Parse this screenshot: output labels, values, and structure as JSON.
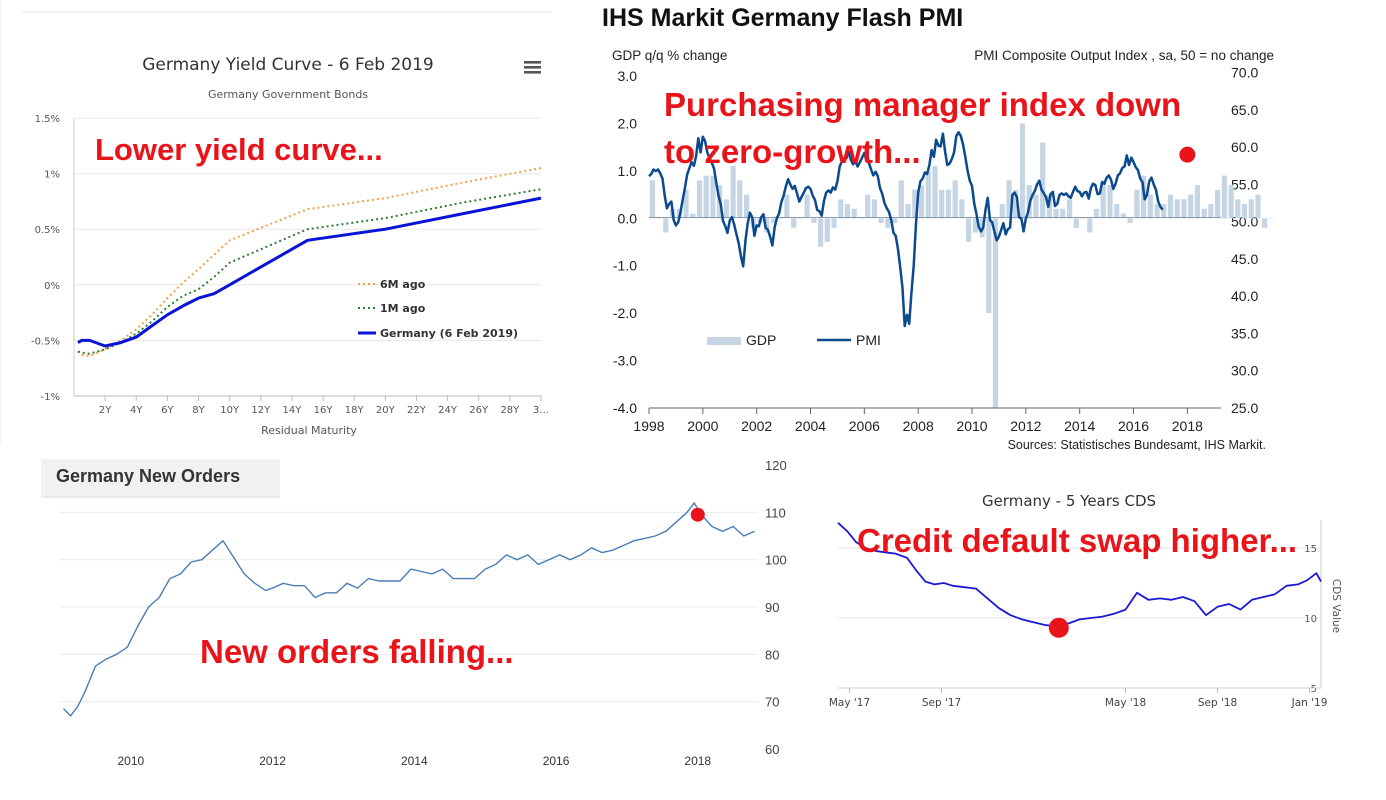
{
  "annotations": {
    "yield": "Lower yield curve...",
    "pmi_line1": "Purchasing manager index down",
    "pmi_line2": "to zero-growth...",
    "orders": "New orders falling...",
    "cds": "Credit default swap higher..."
  },
  "colors": {
    "annotation": "#e8141a",
    "germany_line": "#0a14d6",
    "six_m": "#f2a04a",
    "one_m": "#2e7d32",
    "pmi_line": "#0b4a8e",
    "gdp_bar": "#c5d5e4",
    "orders_line": "#4a7fb5",
    "cds_line": "#1a1ad6",
    "marker": "#e8141a"
  },
  "chart_data": [
    {
      "id": "yield_curve",
      "type": "line",
      "title": "Germany Yield Curve - 6 Feb 2019",
      "subtitle": "Germany Government Bonds",
      "menu_icon": "hamburger-menu-icon",
      "xlabel": "Residual Maturity",
      "ylabel": "",
      "xlim": [
        0,
        30
      ],
      "ylim": [
        -1,
        1.5
      ],
      "ytick_values": [
        -1,
        -0.5,
        0,
        0.5,
        1,
        1.5
      ],
      "ytick_labels": [
        "-1%",
        "-0.5%",
        "0%",
        "0.5%",
        "1%",
        "1.5%"
      ],
      "xtick_values": [
        2,
        4,
        6,
        8,
        10,
        12,
        14,
        16,
        18,
        20,
        22,
        24,
        26,
        28,
        30
      ],
      "xtick_labels": [
        "2Y",
        "4Y",
        "6Y",
        "8Y",
        "10Y",
        "12Y",
        "14Y",
        "16Y",
        "18Y",
        "20Y",
        "22Y",
        "24Y",
        "26Y",
        "28Y",
        "3..."
      ],
      "legend_position": "right-center",
      "series": [
        {
          "name": "6M ago",
          "style": "dotted",
          "color_key": "six_m",
          "x": [
            0.25,
            0.5,
            1,
            2,
            3,
            4,
            5,
            6,
            7,
            8,
            9,
            10,
            15,
            20,
            25,
            30
          ],
          "y": [
            -0.6,
            -0.63,
            -0.64,
            -0.58,
            -0.5,
            -0.4,
            -0.27,
            -0.12,
            0.02,
            0.14,
            0.27,
            0.4,
            0.68,
            0.78,
            0.92,
            1.05
          ]
        },
        {
          "name": "1M ago",
          "style": "dotted",
          "color_key": "one_m",
          "x": [
            0.25,
            0.5,
            1,
            2,
            3,
            4,
            5,
            6,
            7,
            8,
            9,
            10,
            15,
            20,
            25,
            30
          ],
          "y": [
            -0.6,
            -0.61,
            -0.62,
            -0.58,
            -0.52,
            -0.44,
            -0.33,
            -0.2,
            -0.1,
            -0.04,
            0.07,
            0.2,
            0.5,
            0.6,
            0.74,
            0.86
          ]
        },
        {
          "name": "Germany (6 Feb 2019)",
          "style": "solid",
          "color_key": "germany_line",
          "x": [
            0.25,
            0.5,
            1,
            2,
            3,
            4,
            5,
            6,
            7,
            8,
            9,
            10,
            15,
            20,
            25,
            30
          ],
          "y": [
            -0.52,
            -0.5,
            -0.5,
            -0.55,
            -0.52,
            -0.47,
            -0.37,
            -0.27,
            -0.19,
            -0.12,
            -0.08,
            0.0,
            0.4,
            0.5,
            0.64,
            0.78
          ]
        }
      ]
    },
    {
      "id": "pmi",
      "type": "bar+line",
      "title": "IHS Markit Germany Flash PMI",
      "left_axis_label": "GDP q/q % change",
      "right_axis_label": "PMI Composite  Output Index , sa, 50 = no change",
      "source": "Sources: Statistisches Bundesamt, IHS Markit.",
      "xlim": [
        1998,
        2019.25
      ],
      "xtick_values": [
        1998,
        2000,
        2002,
        2004,
        2006,
        2008,
        2010,
        2012,
        2014,
        2016,
        2018
      ],
      "xtick_labels": [
        "1998",
        "2000",
        "2002",
        "2004",
        "2006",
        "2008",
        "2010",
        "2012",
        "2014",
        "2016",
        "2018"
      ],
      "ylim_left": [
        -4,
        3
      ],
      "left_tick_values": [
        3,
        2,
        1,
        0,
        -1,
        -2,
        -3,
        -4
      ],
      "left_tick_labels": [
        "3.0",
        "2.0",
        "1.0",
        "0.0",
        "-1.0",
        "-2.0",
        "-3.0",
        "-4.0"
      ],
      "ylim_right": [
        25,
        72.5
      ],
      "right_tick_values": [
        70,
        65,
        60,
        55,
        50,
        45,
        40,
        35,
        30,
        25
      ],
      "right_tick_labels": [
        "70.0",
        "65.0",
        "60.0",
        "55.0",
        "50.0",
        "45.0",
        "40.0",
        "35.0",
        "30.0",
        "25.0"
      ],
      "legend": [
        "GDP",
        "PMI"
      ],
      "legend_position": "bottom-left",
      "highlight": {
        "x": 2018.0,
        "y": 59.0
      },
      "gdp": {
        "start": 1998.125,
        "step": 0.25,
        "values": [
          0.8,
          0.0,
          -0.3,
          0.2,
          0.2,
          0.6,
          0.1,
          0.8,
          0.9,
          0.9,
          0.7,
          0.4,
          1.1,
          0.8,
          0.5,
          -0.2,
          -0.1,
          -0.3,
          -0.1,
          0.0,
          0.5,
          -0.2,
          0.0,
          0.5,
          -0.1,
          -0.6,
          -0.5,
          -0.2,
          0.4,
          0.3,
          0.2,
          0.0,
          0.5,
          0.4,
          -0.1,
          -0.2,
          -0.1,
          0.8,
          0.3,
          0.6,
          0.7,
          1.0,
          1.1,
          0.6,
          0.6,
          0.8,
          0.4,
          -0.5,
          -0.3,
          -0.4,
          -2.0,
          -4.0,
          0.3,
          0.8,
          0.6,
          2.0,
          0.7,
          0.5,
          1.6,
          0.5,
          0.2,
          0.2,
          0.4,
          -0.2,
          0.0,
          -0.3,
          0.2,
          0.8,
          0.7,
          0.3,
          0.1,
          -0.1,
          0.6,
          0.9,
          0.5,
          0.3,
          0.3,
          0.5,
          0.4,
          0.4,
          0.5,
          0.7,
          0.2,
          0.3,
          0.6,
          0.9,
          0.7,
          0.4,
          0.3,
          0.4,
          0.5,
          -0.2,
          0.0
        ]
      },
      "pmi": {
        "start": 1998.0,
        "step": 0.0833333,
        "values": [
          56.1,
          56.4,
          57.0,
          56.8,
          57.0,
          56.5,
          55.8,
          53.5,
          51.8,
          52.4,
          52.7,
          50.2,
          49.5,
          49.9,
          51.2,
          52.9,
          54.5,
          56.3,
          57.2,
          58.0,
          57.5,
          58.8,
          61.2,
          59.3,
          61.4,
          60.8,
          59.3,
          58.5,
          57.9,
          57.1,
          55.2,
          53.5,
          52.3,
          50.1,
          49.4,
          48.5,
          50.2,
          50.6,
          49.6,
          48.3,
          47.1,
          45.3,
          44.0,
          47.5,
          49.8,
          51.2,
          50.6,
          48.1,
          49.5,
          49.4,
          50.6,
          51.0,
          49.2,
          48.9,
          48.0,
          46.8,
          49.2,
          50.5,
          51.1,
          52.6,
          53.5,
          54.7,
          55.7,
          55.0,
          54.4,
          54.8,
          53.8,
          52.7,
          53.3,
          53.9,
          54.5,
          54.7,
          54.4,
          53.5,
          52.9,
          51.6,
          51.4,
          50.8,
          52.8,
          53.9,
          54.2,
          53.9,
          54.6,
          54.3,
          55.4,
          57.4,
          58.1,
          58.5,
          58.5,
          59.4,
          58.3,
          57.7,
          58.1,
          57.4,
          58.0,
          58.6,
          59.2,
          58.2,
          57.9,
          57.0,
          56.2,
          56.7,
          56.1,
          54.5,
          53.7,
          52.5,
          51.8,
          51.3,
          50.2,
          48.5,
          48.1,
          46.3,
          43.9,
          41.1,
          36.0,
          37.5,
          36.3,
          40.4,
          44.1,
          49.5,
          53.9,
          55.4,
          55.8,
          56.6,
          56.4,
          57.6,
          59.6,
          58.7,
          61.0,
          60.2,
          60.1,
          61.8,
          59.4,
          57.6,
          57.8,
          58.4,
          59.3,
          61.5,
          62.0,
          61.5,
          60.4,
          58.7,
          56.9,
          55.5,
          54.8,
          52.4,
          51.0,
          49.3,
          48.7,
          49.2,
          51.6,
          53.2,
          50.2,
          49.9,
          48.7,
          47.5,
          48.0,
          48.9,
          49.8,
          48.3,
          49.0,
          49.2,
          53.6,
          53.9,
          53.3,
          50.6,
          50.4,
          48.7,
          50.4,
          51.3,
          52.8,
          53.6,
          54.1,
          55.0,
          55.5,
          54.3,
          53.8,
          53.3,
          52.0,
          53.7,
          54.0,
          52.1,
          52.4,
          53.6,
          53.8,
          53.6,
          53.8,
          53.4,
          53.2,
          54.0,
          54.7,
          54.1,
          54.0,
          53.4,
          53.9,
          54.0,
          53.1,
          54.5,
          55.1,
          54.9,
          53.7,
          53.8,
          55.3,
          55.1,
          55.9,
          56.2,
          55.6,
          54.4,
          55.1,
          56.2,
          56.5,
          57.2,
          57.4,
          58.9,
          57.6,
          58.6,
          58.0,
          57.3,
          56.9,
          55.8,
          55.3,
          53.0,
          53.6,
          55.4,
          55.9,
          55.0,
          54.3,
          52.7,
          52.0,
          51.6
        ]
      }
    },
    {
      "id": "new_orders",
      "type": "line",
      "title": "Germany New Orders",
      "xlim": [
        2009.0,
        2018.85
      ],
      "ylim": [
        60,
        120
      ],
      "xtick_values": [
        2010,
        2012,
        2014,
        2016,
        2018
      ],
      "xtick_labels": [
        "2010",
        "2012",
        "2014",
        "2016",
        "2018"
      ],
      "ytick_values": [
        120,
        110,
        100,
        90,
        80,
        70,
        60
      ],
      "ytick_labels": [
        "120",
        "110",
        "100",
        "90",
        "80",
        "70",
        "60"
      ],
      "highlight": {
        "x": 2018.0,
        "y": 109.5
      },
      "series": [
        {
          "name": "New Orders",
          "color_key": "orders_line",
          "x": [
            2009.05,
            2009.15,
            2009.25,
            2009.35,
            2009.5,
            2009.65,
            2009.8,
            2009.95,
            2010.1,
            2010.25,
            2010.4,
            2010.55,
            2010.7,
            2010.85,
            2011.0,
            2011.15,
            2011.3,
            2011.45,
            2011.6,
            2011.75,
            2011.9,
            2012.0,
            2012.15,
            2012.3,
            2012.45,
            2012.6,
            2012.75,
            2012.9,
            2013.05,
            2013.2,
            2013.35,
            2013.5,
            2013.65,
            2013.8,
            2013.95,
            2014.1,
            2014.25,
            2014.4,
            2014.55,
            2014.7,
            2014.85,
            2015.0,
            2015.15,
            2015.3,
            2015.45,
            2015.6,
            2015.75,
            2015.9,
            2016.05,
            2016.2,
            2016.35,
            2016.5,
            2016.65,
            2016.8,
            2016.95,
            2017.1,
            2017.25,
            2017.4,
            2017.55,
            2017.7,
            2017.85,
            2017.95,
            2018.05,
            2018.2,
            2018.35,
            2018.5,
            2018.65,
            2018.8
          ],
          "y": [
            68.5,
            67,
            69,
            72,
            77.5,
            79,
            80,
            81.5,
            86,
            90,
            92,
            96,
            97,
            99.5,
            100,
            102,
            104,
            100.5,
            97,
            95,
            93.5,
            94,
            95,
            94.5,
            94.5,
            92,
            93,
            93,
            95,
            94,
            96,
            95.5,
            95.5,
            95.5,
            98,
            97.5,
            97,
            98,
            96,
            96,
            96,
            98,
            99,
            101,
            100,
            101,
            99,
            100,
            101,
            100,
            101,
            102.5,
            101.5,
            102,
            103,
            104,
            104.5,
            105,
            106,
            108,
            110,
            112,
            109.5,
            107,
            106,
            107,
            105,
            106
          ]
        }
      ]
    },
    {
      "id": "cds",
      "type": "line",
      "title": "Germany - 5 Years CDS",
      "ylabel": "CDS Value",
      "xlim": [
        0,
        21
      ],
      "ylim": [
        5,
        17
      ],
      "xtick_values": [
        0.5,
        4.5,
        12.5,
        16.5,
        20.5
      ],
      "xtick_labels": [
        "May '17",
        "Sep '17",
        "May '18",
        "Sep '18",
        "Jan '19"
      ],
      "ytick_values": [
        15,
        10,
        5
      ],
      "ytick_labels": [
        "15",
        "10",
        "5"
      ],
      "highlight": {
        "x": 9.6,
        "y": 9.3
      },
      "series": [
        {
          "name": "Germany 5Y CDS",
          "color_key": "cds_line",
          "x": [
            0,
            0.4,
            0.8,
            1.2,
            1.6,
            2,
            2.5,
            3,
            3.4,
            3.8,
            4.2,
            4.6,
            5,
            5.5,
            6,
            6.5,
            7,
            7.5,
            8,
            8.5,
            9,
            9.5,
            10,
            10.5,
            11,
            11.5,
            12,
            12.5,
            13,
            13.5,
            14,
            14.5,
            15,
            15.5,
            16,
            16.5,
            17,
            17.5,
            18,
            18.5,
            19,
            19.5,
            20,
            20.4,
            20.8,
            21
          ],
          "y": [
            16.8,
            16.2,
            15.4,
            15.0,
            14.8,
            14.7,
            14.6,
            14.3,
            13.4,
            12.6,
            12.4,
            12.5,
            12.3,
            12.2,
            12.1,
            11.4,
            10.7,
            10.2,
            9.9,
            9.7,
            9.5,
            9.4,
            9.6,
            9.9,
            10.0,
            10.1,
            10.3,
            10.6,
            11.8,
            11.3,
            11.4,
            11.3,
            11.5,
            11.2,
            10.2,
            10.8,
            11.0,
            10.6,
            11.3,
            11.5,
            11.7,
            12.3,
            12.4,
            12.7,
            13.2,
            12.6
          ]
        }
      ]
    }
  ]
}
